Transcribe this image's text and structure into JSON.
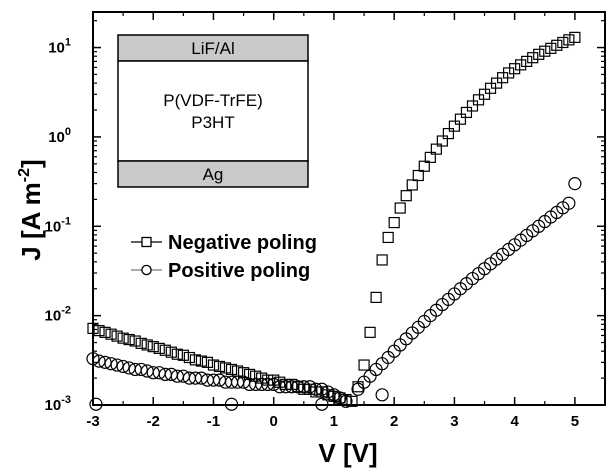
{
  "chart_data": {
    "type": "scatter",
    "xlabel": "V [V]",
    "ylabel_main": "J [A m",
    "ylabel_sup": "-2",
    "ylabel_end": "]",
    "xlim": [
      -3,
      5.5
    ],
    "ylim": [
      0.001,
      25
    ],
    "yscale": "log",
    "x_ticks": [
      -3,
      -2,
      -1,
      0,
      1,
      2,
      3,
      4,
      5
    ],
    "x_tick_labels": [
      "-3",
      "-2",
      "-1",
      "0",
      "1",
      "2",
      "3",
      "4",
      "5"
    ],
    "y_ticks": [
      0.001,
      0.01,
      0.1,
      1,
      10
    ],
    "y_tick_labels": [
      {
        "base": "10",
        "exp": "-3"
      },
      {
        "base": "10",
        "exp": "-2"
      },
      {
        "base": "10",
        "exp": "-1"
      },
      {
        "base": "10",
        "exp": "0"
      },
      {
        "base": "10",
        "exp": "1"
      }
    ],
    "legend_position": "middle-left",
    "series": [
      {
        "name": "Negative poling",
        "marker": "square",
        "points": [
          [
            -3.0,
            0.0072
          ],
          [
            -2.9,
            0.0068
          ],
          [
            -2.8,
            0.0065
          ],
          [
            -2.7,
            0.0062
          ],
          [
            -2.6,
            0.0059
          ],
          [
            -2.5,
            0.0056
          ],
          [
            -2.4,
            0.0054
          ],
          [
            -2.3,
            0.0052
          ],
          [
            -2.2,
            0.0049
          ],
          [
            -2.1,
            0.0047
          ],
          [
            -2.0,
            0.0045
          ],
          [
            -1.9,
            0.0043
          ],
          [
            -1.8,
            0.0041
          ],
          [
            -1.7,
            0.0039
          ],
          [
            -1.6,
            0.0037
          ],
          [
            -1.5,
            0.0036
          ],
          [
            -1.4,
            0.0034
          ],
          [
            -1.3,
            0.0032
          ],
          [
            -1.2,
            0.0031
          ],
          [
            -1.1,
            0.003
          ],
          [
            -1.0,
            0.0028
          ],
          [
            -0.9,
            0.0027
          ],
          [
            -0.8,
            0.0026
          ],
          [
            -0.7,
            0.0025
          ],
          [
            -0.6,
            0.0024
          ],
          [
            -0.5,
            0.0023
          ],
          [
            -0.4,
            0.0022
          ],
          [
            -0.3,
            0.0021
          ],
          [
            -0.2,
            0.002
          ],
          [
            -0.1,
            0.0019
          ],
          [
            0.0,
            0.0019
          ],
          [
            0.1,
            0.0018
          ],
          [
            0.2,
            0.0017
          ],
          [
            0.3,
            0.0017
          ],
          [
            0.4,
            0.0016
          ],
          [
            0.5,
            0.0015
          ],
          [
            0.6,
            0.0015
          ],
          [
            0.7,
            0.0014
          ],
          [
            0.8,
            0.0014
          ],
          [
            0.9,
            0.0013
          ],
          [
            1.0,
            0.00125
          ],
          [
            1.1,
            0.0012
          ],
          [
            1.2,
            0.00115
          ],
          [
            1.3,
            0.0011
          ],
          [
            1.4,
            0.0016
          ],
          [
            1.5,
            0.0028
          ],
          [
            1.6,
            0.0065
          ],
          [
            1.7,
            0.016
          ],
          [
            1.8,
            0.042
          ],
          [
            1.9,
            0.075
          ],
          [
            2.0,
            0.11
          ],
          [
            2.1,
            0.16
          ],
          [
            2.2,
            0.22
          ],
          [
            2.3,
            0.29
          ],
          [
            2.4,
            0.37
          ],
          [
            2.5,
            0.47
          ],
          [
            2.6,
            0.59
          ],
          [
            2.7,
            0.73
          ],
          [
            2.8,
            0.9
          ],
          [
            2.9,
            1.09
          ],
          [
            3.0,
            1.32
          ],
          [
            3.1,
            1.58
          ],
          [
            3.2,
            1.88
          ],
          [
            3.3,
            2.22
          ],
          [
            3.4,
            2.6
          ],
          [
            3.5,
            3.0
          ],
          [
            3.6,
            3.5
          ],
          [
            3.7,
            4.0
          ],
          [
            3.8,
            4.6
          ],
          [
            3.9,
            5.2
          ],
          [
            4.0,
            5.8
          ],
          [
            4.1,
            6.4
          ],
          [
            4.2,
            7.0
          ],
          [
            4.3,
            7.7
          ],
          [
            4.4,
            8.4
          ],
          [
            4.5,
            9.1
          ],
          [
            4.6,
            9.8
          ],
          [
            4.7,
            10.6
          ],
          [
            4.8,
            11.4
          ],
          [
            4.9,
            12.2
          ],
          [
            5.0,
            13.0
          ]
        ]
      },
      {
        "name": "Positive poling",
        "marker": "circle",
        "points": [
          [
            -3.0,
            0.0033
          ],
          [
            -2.9,
            0.0031
          ],
          [
            -2.8,
            0.003
          ],
          [
            -2.7,
            0.0029
          ],
          [
            -2.6,
            0.0028
          ],
          [
            -2.5,
            0.0027
          ],
          [
            -2.4,
            0.0026
          ],
          [
            -2.3,
            0.0025
          ],
          [
            -2.2,
            0.0025
          ],
          [
            -2.1,
            0.0024
          ],
          [
            -2.0,
            0.0023
          ],
          [
            -1.9,
            0.0023
          ],
          [
            -1.8,
            0.0022
          ],
          [
            -1.7,
            0.0022
          ],
          [
            -1.6,
            0.0021
          ],
          [
            -1.5,
            0.0021
          ],
          [
            -1.4,
            0.002
          ],
          [
            -1.3,
            0.002
          ],
          [
            -1.2,
            0.002
          ],
          [
            -1.1,
            0.0019
          ],
          [
            -1.0,
            0.0019
          ],
          [
            -0.9,
            0.0019
          ],
          [
            -0.8,
            0.0018
          ],
          [
            -0.7,
            0.0018
          ],
          [
            -0.6,
            0.0018
          ],
          [
            -0.5,
            0.0018
          ],
          [
            -0.4,
            0.0017
          ],
          [
            -0.3,
            0.0017
          ],
          [
            -0.2,
            0.0017
          ],
          [
            -0.1,
            0.0017
          ],
          [
            0.0,
            0.0017
          ],
          [
            0.1,
            0.0016
          ],
          [
            0.2,
            0.0016
          ],
          [
            0.3,
            0.0016
          ],
          [
            0.4,
            0.0016
          ],
          [
            0.5,
            0.0016
          ],
          [
            0.6,
            0.0016
          ],
          [
            0.7,
            0.0015
          ],
          [
            0.8,
            0.0015
          ],
          [
            0.9,
            0.0014
          ],
          [
            1.0,
            0.0013
          ],
          [
            1.1,
            0.0012
          ],
          [
            1.2,
            0.0011
          ],
          [
            -2.95,
            0.00102
          ],
          [
            -0.7,
            0.00102
          ],
          [
            0.8,
            0.00102
          ],
          [
            1.8,
            0.0013
          ],
          [
            1.4,
            0.0015
          ],
          [
            1.5,
            0.0018
          ],
          [
            1.6,
            0.0021
          ],
          [
            1.7,
            0.0025
          ],
          [
            1.8,
            0.0029
          ],
          [
            1.9,
            0.0034
          ],
          [
            2.0,
            0.004
          ],
          [
            2.1,
            0.0047
          ],
          [
            2.2,
            0.0055
          ],
          [
            2.3,
            0.0064
          ],
          [
            2.4,
            0.0074
          ],
          [
            2.5,
            0.0086
          ],
          [
            2.6,
            0.01
          ],
          [
            2.7,
            0.0115
          ],
          [
            2.8,
            0.0133
          ],
          [
            2.9,
            0.0152
          ],
          [
            3.0,
            0.0175
          ],
          [
            3.1,
            0.02
          ],
          [
            3.2,
            0.0228
          ],
          [
            3.3,
            0.026
          ],
          [
            3.4,
            0.0295
          ],
          [
            3.5,
            0.0335
          ],
          [
            3.6,
            0.038
          ],
          [
            3.7,
            0.043
          ],
          [
            3.8,
            0.0485
          ],
          [
            3.9,
            0.055
          ],
          [
            4.0,
            0.062
          ],
          [
            4.1,
            0.07
          ],
          [
            4.2,
            0.079
          ],
          [
            4.3,
            0.089
          ],
          [
            4.4,
            0.1
          ],
          [
            4.5,
            0.113
          ],
          [
            4.6,
            0.127
          ],
          [
            4.7,
            0.143
          ],
          [
            4.8,
            0.161
          ],
          [
            4.9,
            0.181
          ],
          [
            5.0,
            0.3
          ]
        ]
      }
    ],
    "inset": {
      "top_layer": "LiF/Al",
      "middle_line1": "P(VDF-TrFE)",
      "middle_line2": "P3HT",
      "bottom_layer": "Ag",
      "layer_color": "#c9c9c9"
    }
  }
}
